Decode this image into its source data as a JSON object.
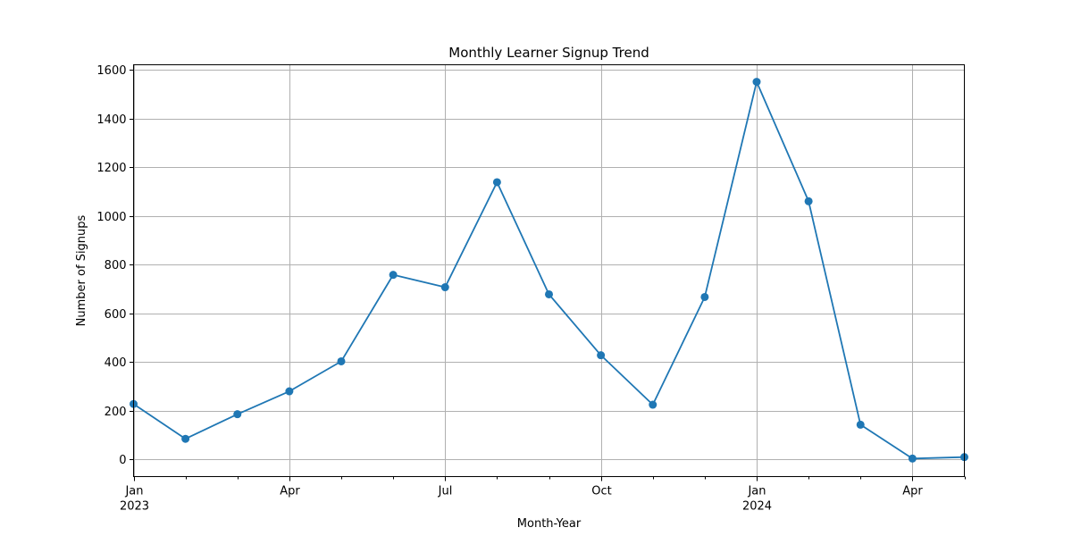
{
  "chart_data": {
    "type": "line",
    "title": "Monthly Learner Signup Trend",
    "xlabel": "Month-Year",
    "ylabel": "Number of Signups",
    "x": [
      "2023-01",
      "2023-02",
      "2023-03",
      "2023-04",
      "2023-05",
      "2023-06",
      "2023-07",
      "2023-08",
      "2023-09",
      "2023-10",
      "2023-11",
      "2023-12",
      "2024-01",
      "2024-02",
      "2024-03",
      "2024-04",
      "2024-05"
    ],
    "series": [
      {
        "values": [
          228,
          85,
          186,
          280,
          403,
          758,
          707,
          1138,
          678,
          428,
          225,
          667,
          1550,
          1060,
          143,
          4,
          10
        ]
      }
    ],
    "ylim": [
      -70,
      1620
    ],
    "y_ticks": [
      0,
      200,
      400,
      600,
      800,
      1000,
      1200,
      1400,
      1600
    ],
    "x_ticks_major": [
      {
        "x": "2023-01",
        "label": "Jan",
        "sublabel": "2023"
      },
      {
        "x": "2023-04",
        "label": "Apr",
        "sublabel": ""
      },
      {
        "x": "2023-07",
        "label": "Jul",
        "sublabel": ""
      },
      {
        "x": "2023-10",
        "label": "Oct",
        "sublabel": ""
      },
      {
        "x": "2024-01",
        "label": "Jan",
        "sublabel": "2024"
      },
      {
        "x": "2024-04",
        "label": "Apr",
        "sublabel": ""
      }
    ],
    "x_ticks_minor": [
      "2023-02",
      "2023-03",
      "2023-05",
      "2023-06",
      "2023-08",
      "2023-09",
      "2023-11",
      "2023-12",
      "2024-02",
      "2024-03",
      "2024-05"
    ],
    "grid": true,
    "colors": {
      "line": "#1f77b4",
      "grid": "#b0b0b0",
      "axes": "#000000"
    },
    "marker": "circle"
  }
}
